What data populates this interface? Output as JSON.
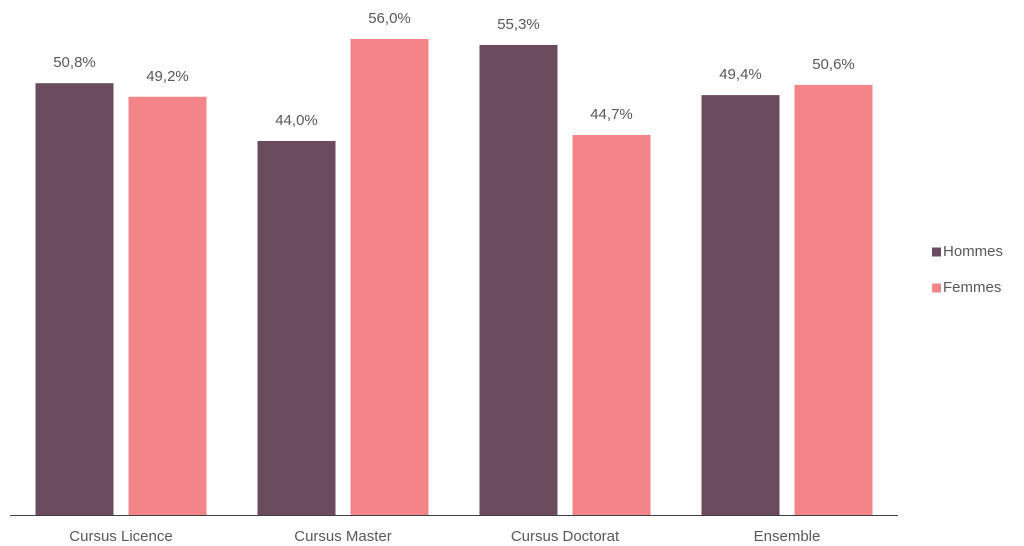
{
  "chart_data": {
    "type": "bar",
    "categories": [
      "Cursus Licence",
      "Cursus Master",
      "Cursus Doctorat",
      "Ensemble"
    ],
    "series": [
      {
        "name": "Hommes",
        "color": "#6b4c5f",
        "values": [
          50.8,
          44.0,
          55.3,
          49.4
        ],
        "value_labels": [
          "50,8%",
          "44,0%",
          "55,3%",
          "49,4%"
        ]
      },
      {
        "name": "Femmes",
        "color": "#f38488",
        "values": [
          49.2,
          56.0,
          44.7,
          50.6
        ],
        "value_labels": [
          "49,2%",
          "56,0%",
          "44,7%",
          "50,6%"
        ]
      }
    ],
    "legend": "right"
  }
}
